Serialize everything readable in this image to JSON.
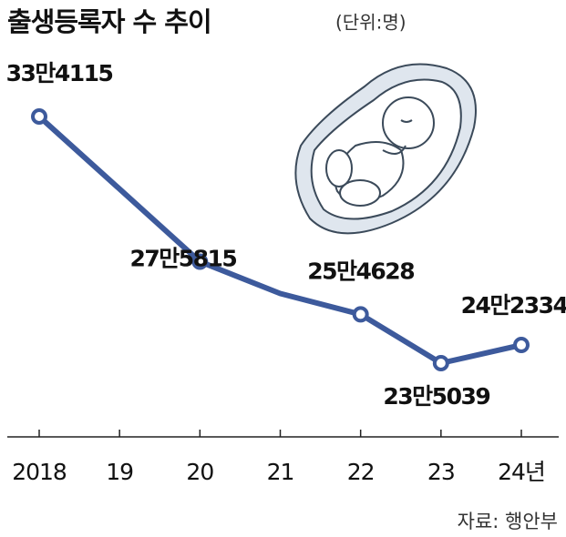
{
  "chart_data": {
    "type": "line",
    "title": "출생등록자 수 추이",
    "subtitle": "(단위:명)",
    "categories": [
      "2018",
      "19",
      "20",
      "21",
      "22",
      "23",
      "24년"
    ],
    "values": [
      334115,
      305000,
      275815,
      263000,
      254628,
      235039,
      242334
    ],
    "value_labels": [
      "33만4115",
      null,
      "27만5815",
      null,
      "25만4628",
      "23만5039",
      "24만2334"
    ],
    "color": "#3d5a9c",
    "source": "자료: 행안부"
  }
}
